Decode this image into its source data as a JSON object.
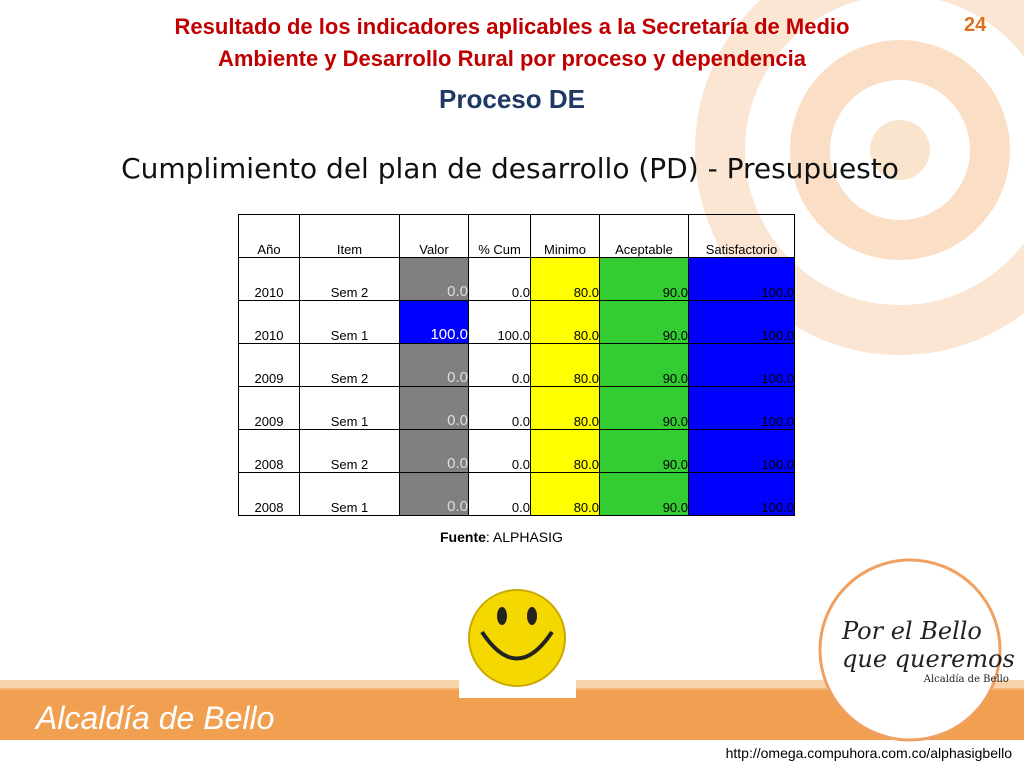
{
  "header": {
    "title_line1": "Resultado de los indicadores aplicables a la Secretaría de Medio",
    "title_line2": "Ambiente y Desarrollo Rural  por proceso y dependencia",
    "page_number": "24",
    "subtitle": "Proceso DE"
  },
  "table_title": "Cumplimiento del plan de desarrollo (PD) - Presupuesto",
  "table": {
    "columns": [
      "Año",
      "Item",
      "Valor",
      "% Cum",
      "Minimo",
      "Aceptable",
      "Satisfactorio"
    ],
    "rows": [
      [
        "2010",
        "Sem 2",
        "0.0",
        "0.0",
        "80.0",
        "90.0",
        "100.0"
      ],
      [
        "2010",
        "Sem 1",
        "100.0",
        "100.0",
        "80.0",
        "90.0",
        "100.0"
      ],
      [
        "2009",
        "Sem 2",
        "0.0",
        "0.0",
        "80.0",
        "90.0",
        "100.0"
      ],
      [
        "2009",
        "Sem 1",
        "0.0",
        "0.0",
        "80.0",
        "90.0",
        "100.0"
      ],
      [
        "2008",
        "Sem 2",
        "0.0",
        "0.0",
        "80.0",
        "90.0",
        "100.0"
      ],
      [
        "2008",
        "Sem 1",
        "0.0",
        "0.0",
        "80.0",
        "90.0",
        "100.0"
      ]
    ],
    "valor_colors": [
      "#808080",
      "#0000ff",
      "#808080",
      "#808080",
      "#808080",
      "#808080"
    ],
    "column_colors": [
      null,
      null,
      null,
      null,
      "#ffff00",
      "#33cc33",
      "#0000ff"
    ]
  },
  "source": {
    "label": "Fuente",
    "text": ": ALPHASIG"
  },
  "logo": {
    "line1": "Por el Bello",
    "line2": "que queremos",
    "line3": "Alcaldía de Bello"
  },
  "footer": {
    "brand": "Alcaldía de Bello",
    "url": "http://omega.compuhora.com.co/alphasigbello"
  }
}
